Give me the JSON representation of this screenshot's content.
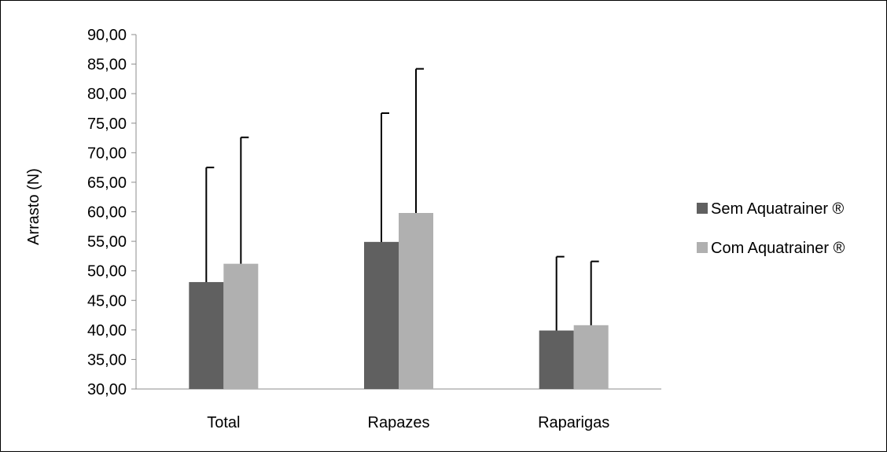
{
  "chart_data": {
    "type": "bar",
    "title": "",
    "xlabel": "",
    "ylabel": "Arrasto (N)",
    "ylim": [
      30,
      90
    ],
    "ytick_step": 5,
    "ytick_labels": [
      "30,00",
      "35,00",
      "40,00",
      "45,00",
      "50,00",
      "55,00",
      "60,00",
      "65,00",
      "70,00",
      "75,00",
      "80,00",
      "85,00",
      "90,00"
    ],
    "categories": [
      "Total",
      "Rapazes",
      "Raparigas"
    ],
    "series": [
      {
        "name": "Sem Aquatrainer ®",
        "color": "#606060",
        "values": [
          48.1,
          54.9,
          39.9
        ],
        "error_upper": [
          67.5,
          76.7,
          52.4
        ]
      },
      {
        "name": "Com Aquatrainer ®",
        "color": "#b0b0b0",
        "values": [
          51.2,
          59.8,
          40.8
        ],
        "error_upper": [
          72.6,
          84.2,
          51.6
        ]
      }
    ],
    "grid": false,
    "legend_position": "right"
  }
}
